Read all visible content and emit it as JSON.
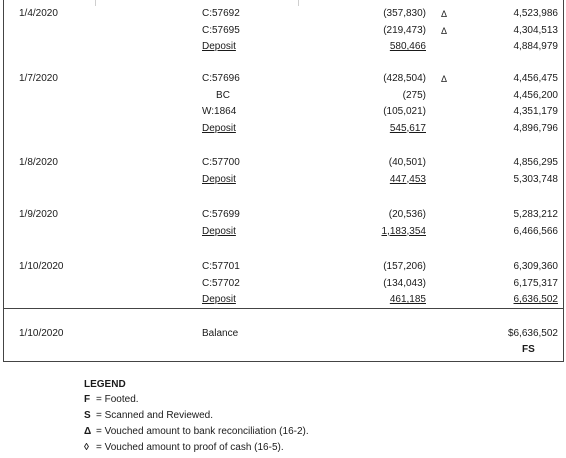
{
  "groups": [
    {
      "date": "1/4/2020",
      "entries": [
        {
          "ref": "C:57692",
          "amount": "(357,830)",
          "tick": "Δ",
          "balance": "4,523,986"
        },
        {
          "ref": "C:57695",
          "amount": "(219,473)",
          "tick": "Δ",
          "balance": "4,304,513"
        },
        {
          "ref": "Deposit",
          "amount": "580,466",
          "tick": "",
          "balance": "4,884,979"
        }
      ]
    },
    {
      "date": "1/7/2020",
      "entries": [
        {
          "ref": "C:57696",
          "amount": "(428,504)",
          "tick": "Δ",
          "balance": "4,456,475"
        },
        {
          "ref": "BC",
          "amount": "(275)",
          "tick": "",
          "balance": "4,456,200"
        },
        {
          "ref": "W:1864",
          "amount": "(105,021)",
          "tick": "",
          "balance": "4,351,179"
        },
        {
          "ref": "Deposit",
          "amount": "545,617",
          "tick": "",
          "balance": "4,896,796"
        }
      ]
    },
    {
      "date": "1/8/2020",
      "entries": [
        {
          "ref": "C:57700",
          "amount": "(40,501)",
          "tick": "",
          "balance": "4,856,295"
        },
        {
          "ref": "Deposit",
          "amount": "447,453",
          "tick": "",
          "balance": "5,303,748"
        }
      ]
    },
    {
      "date": "1/9/2020",
      "entries": [
        {
          "ref": "C:57699",
          "amount": "(20,536)",
          "tick": "",
          "balance": "5,283,212"
        },
        {
          "ref": "Deposit",
          "amount": "1,183,354",
          "tick": "",
          "balance": "6,466,566"
        }
      ]
    },
    {
      "date": "1/10/2020",
      "entries": [
        {
          "ref": "C:57701",
          "amount": "(157,206)",
          "tick": "",
          "balance": "6,309,360"
        },
        {
          "ref": "C:57702",
          "amount": "(134,043)",
          "tick": "",
          "balance": "6,175,317"
        },
        {
          "ref": "Deposit",
          "amount": "461,185",
          "tick": "",
          "balance": "6,636,502"
        }
      ]
    }
  ],
  "summary": {
    "date": "1/10/2020",
    "label": "Balance",
    "balance": "$6,636,502",
    "mark": "FS"
  },
  "legend": {
    "title": "LEGEND",
    "items": [
      {
        "symbol": "F",
        "text": "= Footed."
      },
      {
        "symbol": "S",
        "text": "= Scanned and Reviewed."
      },
      {
        "symbol": "Δ",
        "text": "= Vouched amount to bank reconciliation (16-2)."
      },
      {
        "symbol": "◊",
        "text": "= Vouched amount to proof of cash (16-5)."
      }
    ]
  }
}
